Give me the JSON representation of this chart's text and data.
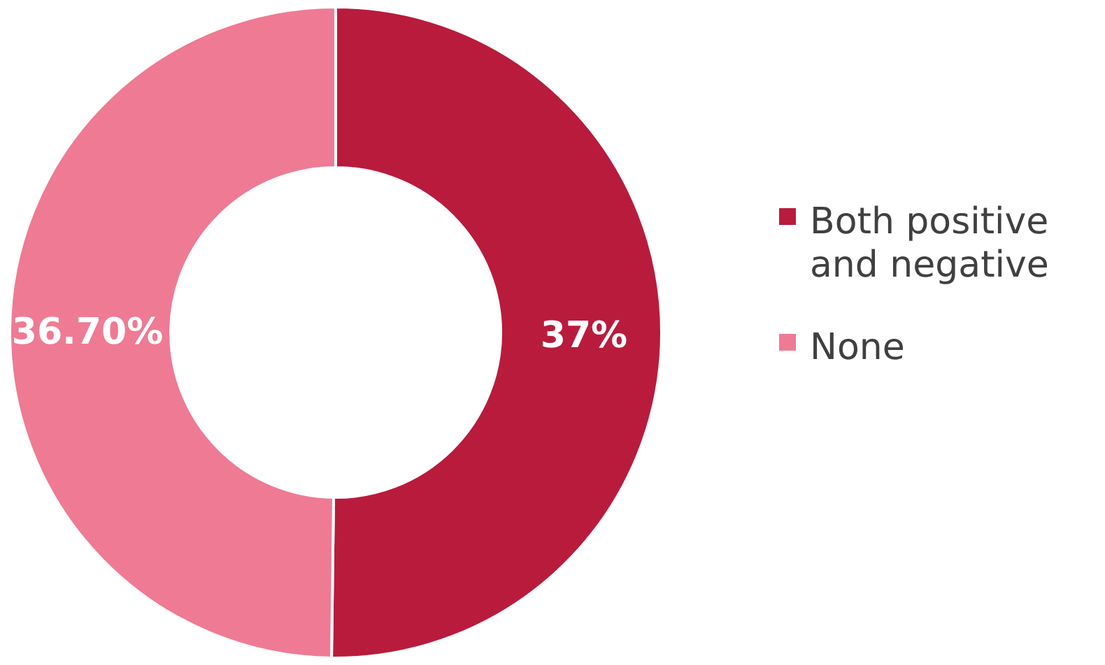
{
  "chart_data": {
    "type": "donut",
    "categories": [
      "Both positive and negative",
      "None"
    ],
    "values": [
      37,
      36.7
    ],
    "value_labels": [
      "37%",
      "36.70%"
    ],
    "colors": [
      "#b91b3d",
      "#ef7a93"
    ],
    "legend": "right"
  }
}
